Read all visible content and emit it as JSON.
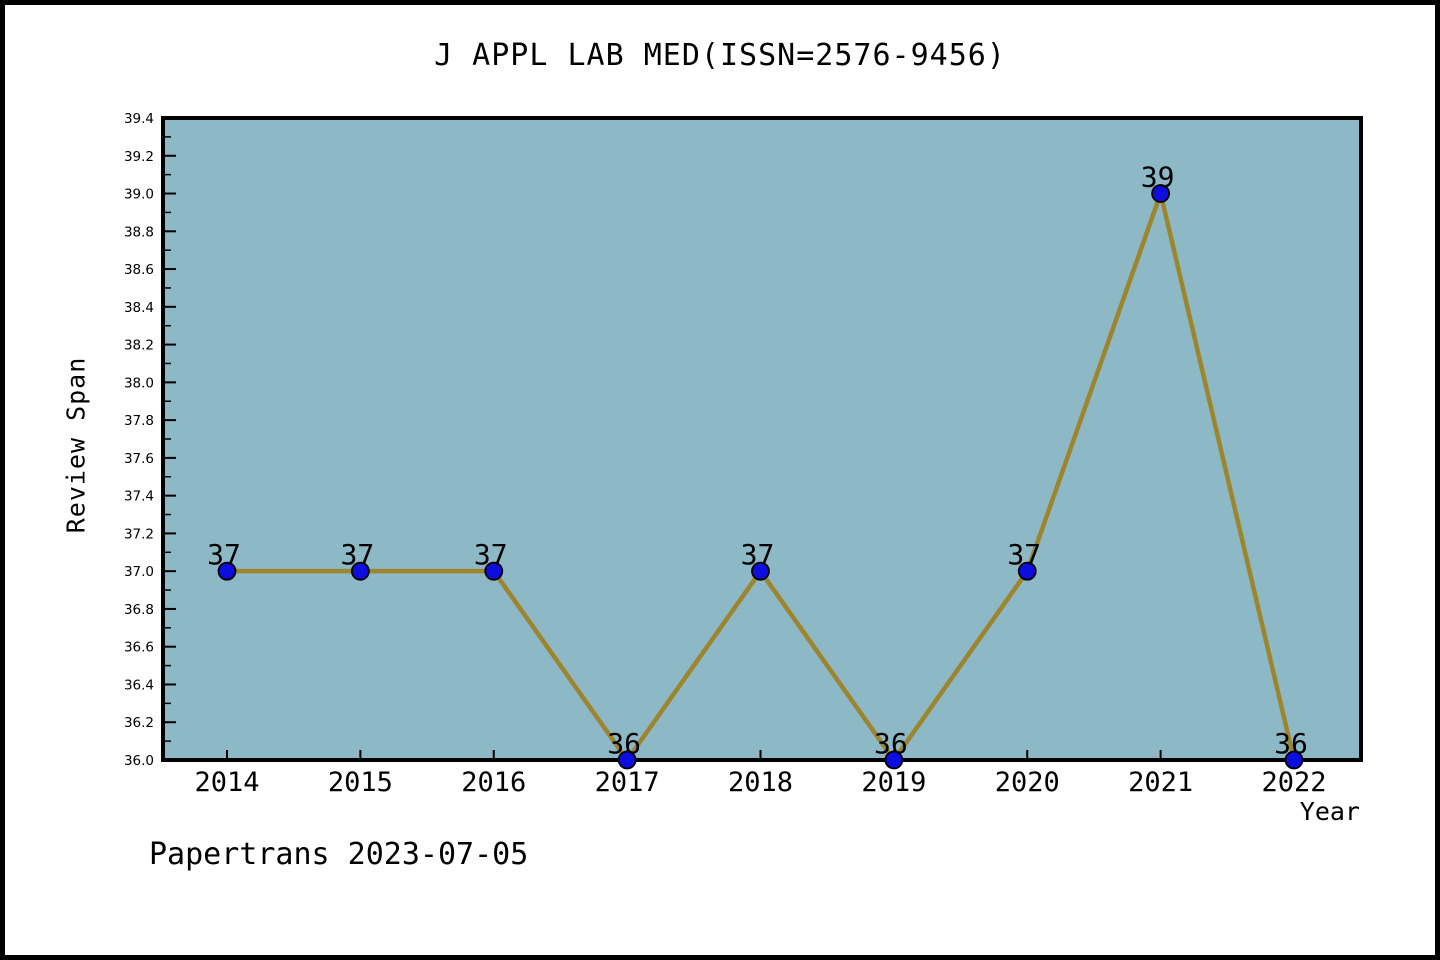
{
  "chart_data": {
    "type": "line",
    "title": "J APPL LAB MED(ISSN=2576-9456)",
    "xlabel": "Year",
    "ylabel": "Review Span",
    "categories": [
      "2014",
      "2015",
      "2016",
      "2017",
      "2018",
      "2019",
      "2020",
      "2021",
      "2022"
    ],
    "values": [
      37,
      37,
      37,
      36,
      37,
      36,
      37,
      39,
      36
    ],
    "point_labels": [
      "37",
      "37",
      "37",
      "36",
      "37",
      "36",
      "37",
      "39",
      "36"
    ],
    "ylim": [
      36.0,
      39.4
    ],
    "ytick_major_step": 0.2,
    "ytick_minor_step": 0.1,
    "grid": false,
    "legend": null,
    "annotation": "Papertrans 2023-07-05",
    "colors": {
      "page_bg": "#ffffff",
      "outer_border": "#000000",
      "plot_bg": "#8db8c6",
      "frame": "#000000",
      "line": "#9d852e",
      "marker_fill": "#0d0de0",
      "marker_edge": "#000000",
      "text": "#000000"
    }
  }
}
